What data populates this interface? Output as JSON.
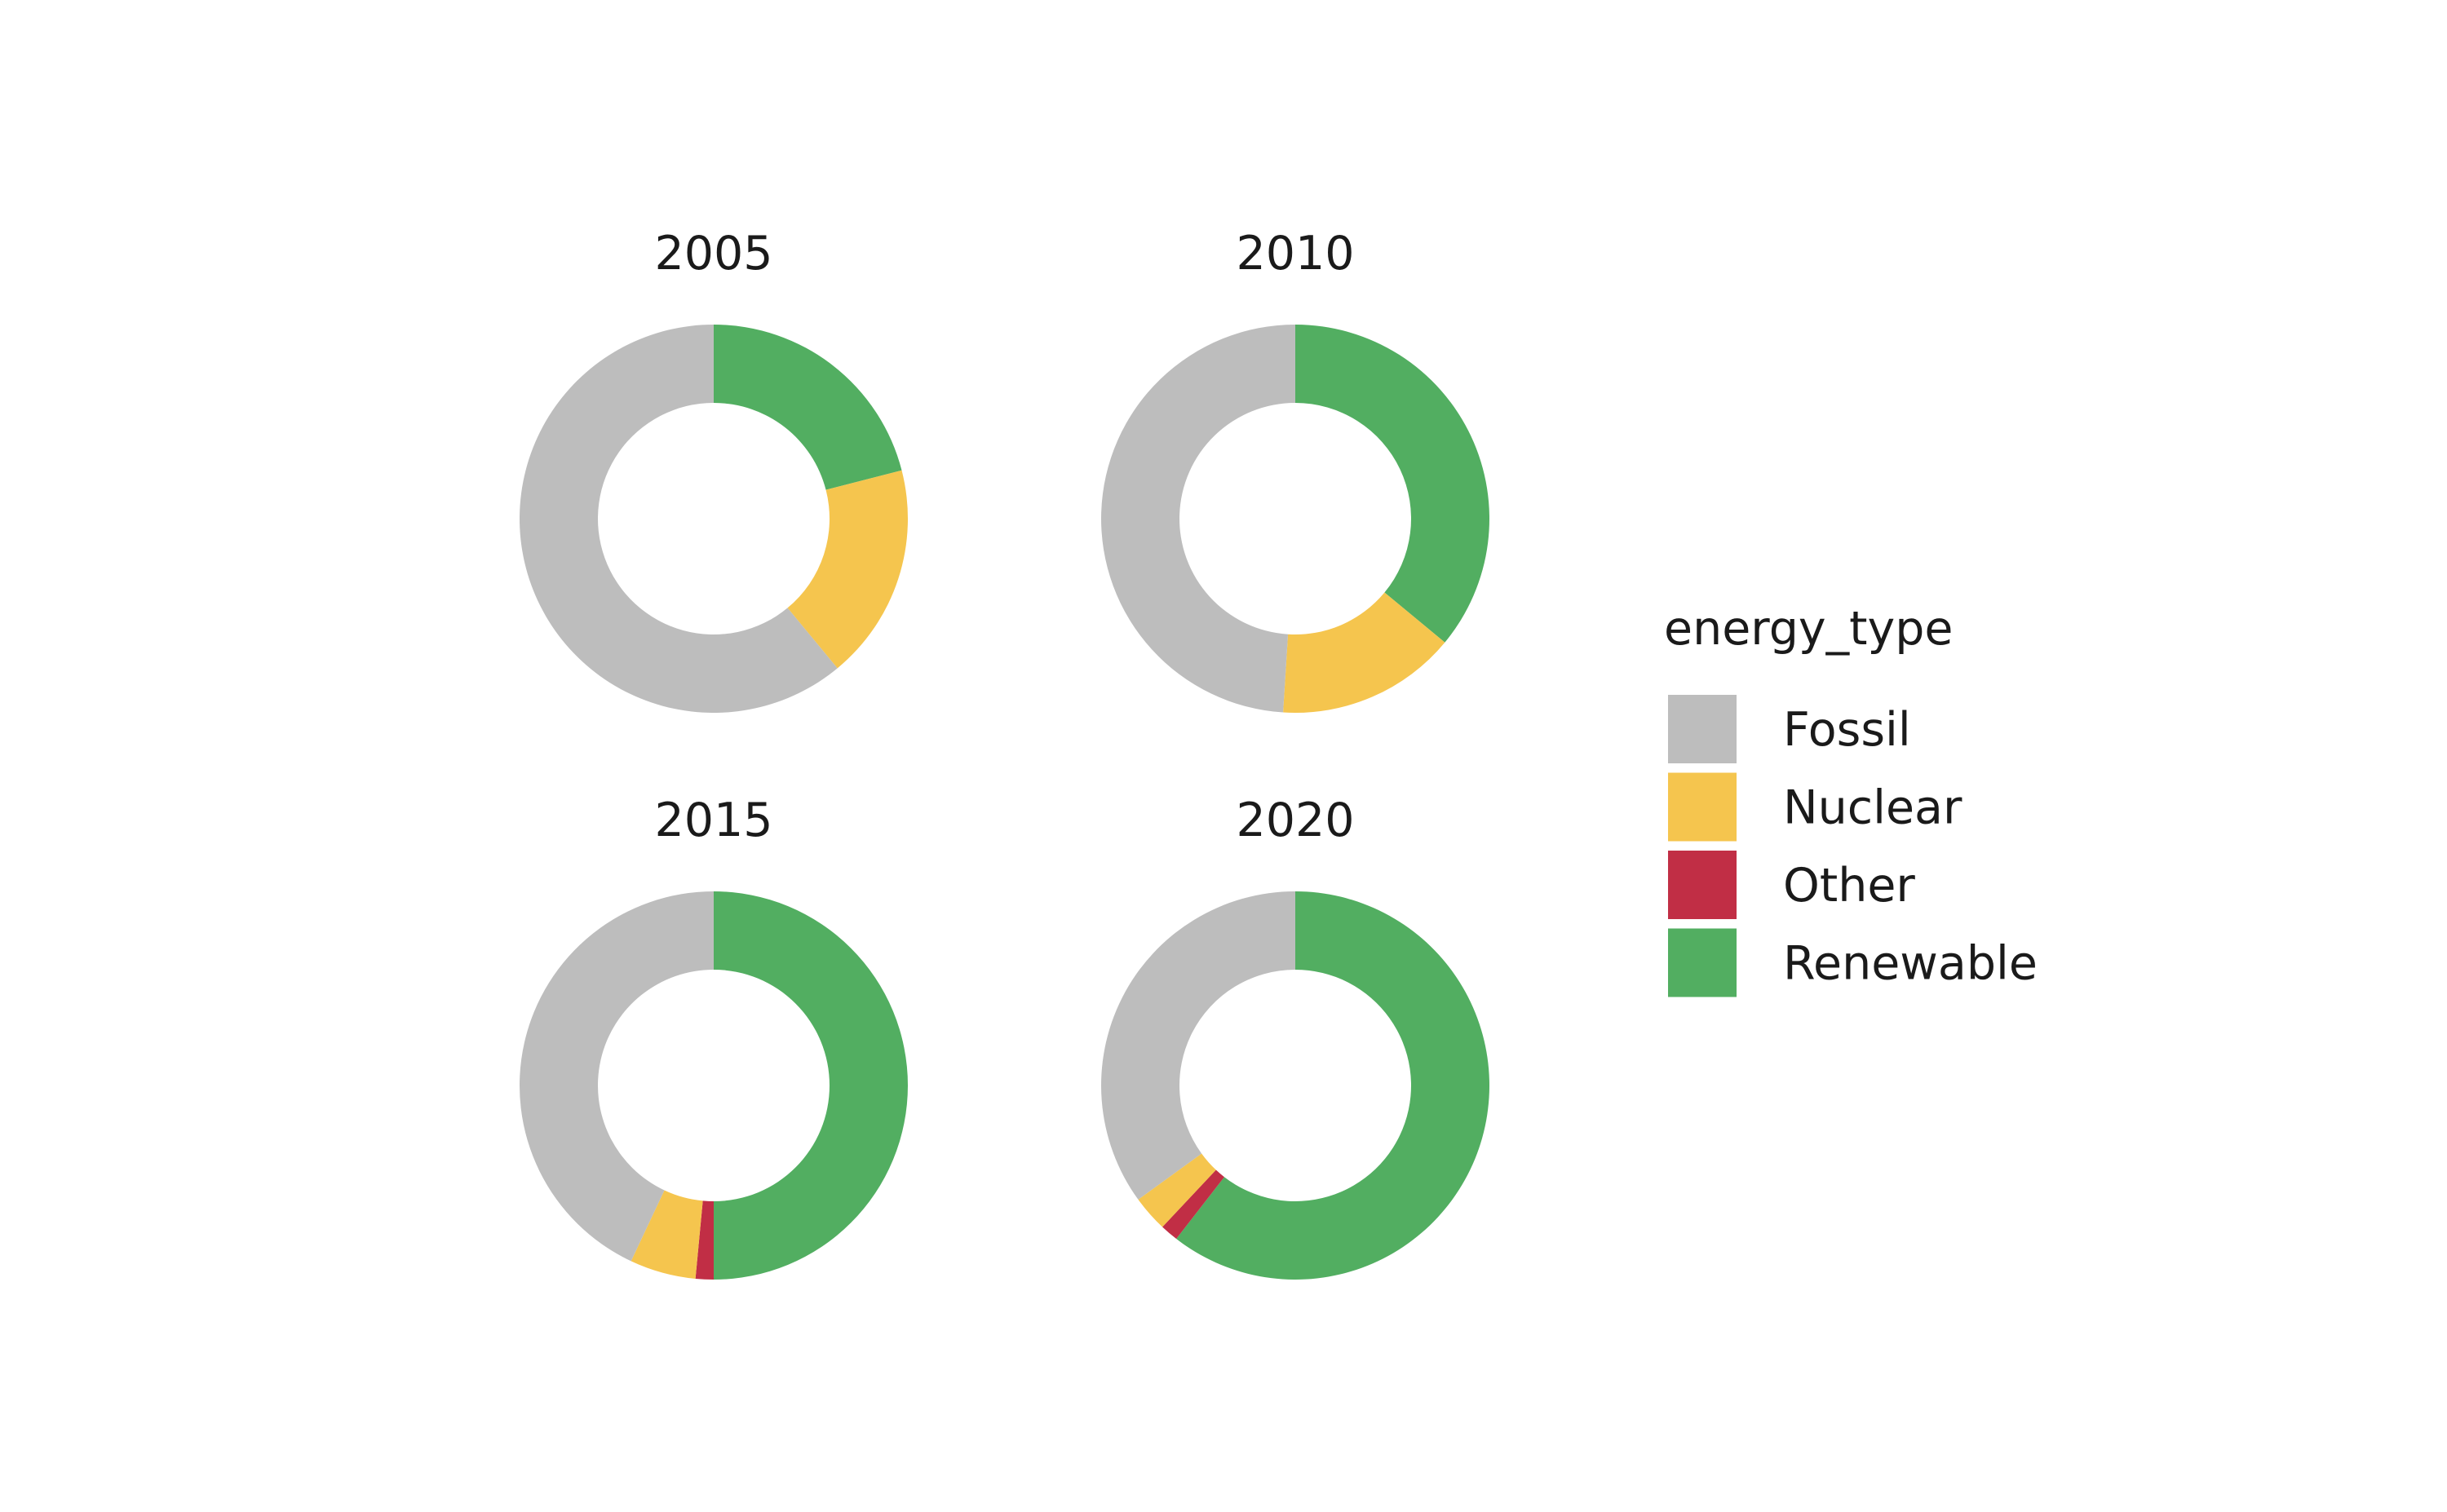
{
  "chart_data": {
    "type": "donut",
    "facet_by": "year",
    "legend": {
      "title": "energy_type",
      "placement": "right",
      "entries": [
        {
          "label": "Fossil",
          "color": "#bdbdbd"
        },
        {
          "label": "Nuclear",
          "color": "#f5c54e"
        },
        {
          "label": "Other",
          "color": "#c12e45"
        },
        {
          "label": "Renewable",
          "color": "#52ae61"
        }
      ]
    },
    "categories": [
      "Fossil",
      "Nuclear",
      "Other",
      "Renewable"
    ],
    "panels": [
      {
        "title": "2005",
        "values": {
          "Fossil": 61,
          "Nuclear": 18,
          "Other": 0,
          "Renewable": 21
        }
      },
      {
        "title": "2010",
        "values": {
          "Fossil": 49,
          "Nuclear": 15,
          "Other": 0,
          "Renewable": 36
        }
      },
      {
        "title": "2015",
        "values": {
          "Fossil": 43,
          "Nuclear": 5.5,
          "Other": 1.5,
          "Renewable": 50
        }
      },
      {
        "title": "2020",
        "values": {
          "Fossil": 35,
          "Nuclear": 3,
          "Other": 1.5,
          "Renewable": 60.5
        }
      }
    ]
  }
}
